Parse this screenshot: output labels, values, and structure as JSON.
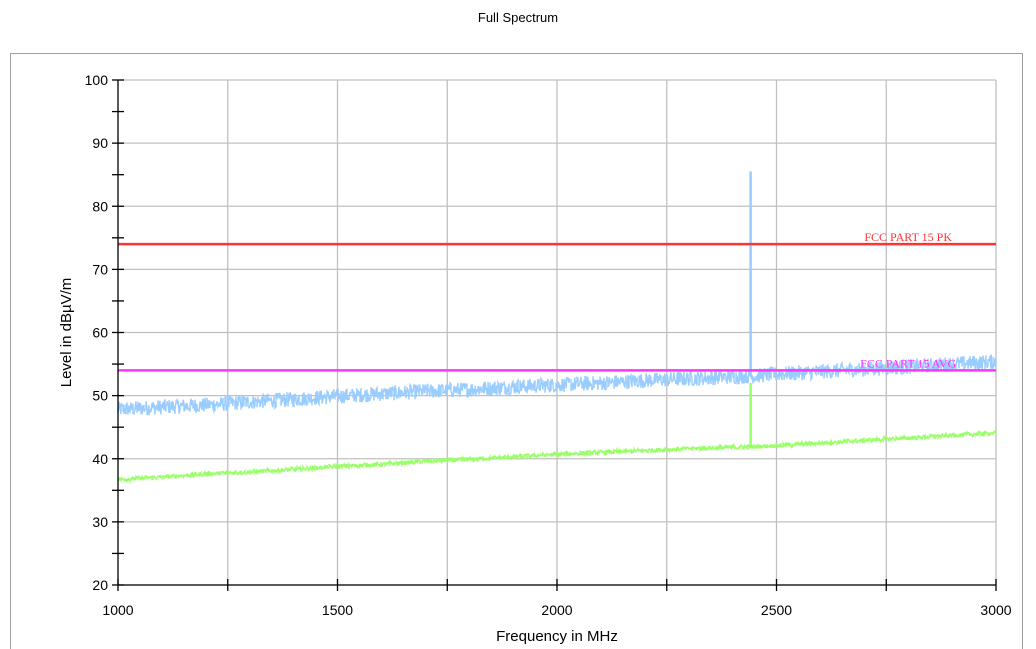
{
  "chart_data": {
    "type": "line",
    "title": "Full Spectrum",
    "xlabel": "Frequency in MHz",
    "ylabel": "Level in dBµV/m",
    "xlim": [
      1000,
      3000
    ],
    "ylim": [
      20,
      100
    ],
    "x_ticks": [
      1000,
      1500,
      2000,
      2500,
      3000
    ],
    "y_ticks": [
      20,
      30,
      40,
      50,
      60,
      70,
      80,
      90,
      100
    ],
    "grid": true,
    "colors": {
      "peak_trace": "#99ccff",
      "avg_trace": "#99ff66",
      "pk_limit": "#ff3333",
      "avg_limit": "#ff33ff",
      "grid": "#c0c0c0"
    },
    "series": [
      {
        "kind": "trace",
        "color_key": "peak_trace",
        "x": [
          1000,
          1100,
          1200,
          1300,
          1400,
          1500,
          1600,
          1700,
          1800,
          1900,
          2000,
          2100,
          2200,
          2300,
          2400,
          2440,
          2441,
          2443,
          2450,
          2500,
          2600,
          2700,
          2800,
          2900,
          3000
        ],
        "y": [
          47.8,
          48.2,
          48.5,
          49.0,
          49.4,
          49.9,
          50.3,
          50.7,
          51.0,
          51.4,
          51.7,
          52.0,
          52.4,
          52.7,
          53.0,
          53.1,
          85.5,
          53.1,
          53.1,
          53.4,
          53.8,
          54.2,
          54.6,
          55.0,
          55.4
        ],
        "noise": 1.2
      },
      {
        "kind": "trace",
        "color_key": "avg_trace",
        "x": [
          1000,
          1100,
          1200,
          1300,
          1400,
          1500,
          1600,
          1700,
          1800,
          1900,
          2000,
          2100,
          2200,
          2300,
          2400,
          2440,
          2441,
          2443,
          2450,
          2500,
          2600,
          2700,
          2800,
          2900,
          3000
        ],
        "y": [
          36.7,
          37.1,
          37.6,
          37.9,
          38.3,
          38.8,
          39.1,
          39.6,
          39.9,
          40.3,
          40.7,
          41.0,
          41.3,
          41.6,
          41.8,
          41.9,
          52.0,
          41.9,
          41.9,
          42.1,
          42.5,
          42.9,
          43.3,
          43.7,
          44.1
        ],
        "noise": 0.35
      },
      {
        "kind": "limit",
        "name": "FCC PART 15  PK",
        "color_key": "pk_limit",
        "x": [
          1000,
          3000
        ],
        "y": [
          74,
          74
        ]
      },
      {
        "kind": "limit",
        "name": "FCC PART 15 AVG",
        "color_key": "avg_limit",
        "x": [
          1000,
          3000
        ],
        "y": [
          54,
          54
        ]
      }
    ]
  }
}
